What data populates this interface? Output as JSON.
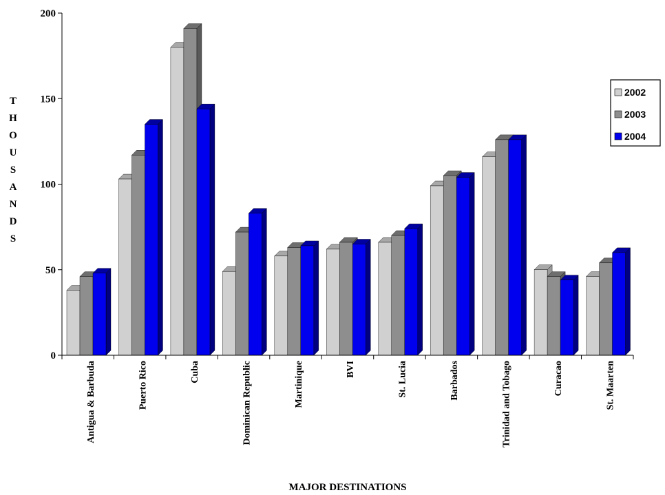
{
  "chart_data": {
    "type": "bar",
    "title": "",
    "xlabel": "MAJOR DESTINATIONS",
    "ylabel": "THOUSANDS",
    "ylim": [
      0,
      200
    ],
    "yticks": [
      0,
      50,
      100,
      150,
      200
    ],
    "categories": [
      "Antigua & Barbuda",
      "Puerto Rico",
      "Cuba",
      "Dominican Republic",
      "Martinique",
      "BVI",
      "St. Lucia",
      "Barbados",
      "Trinidad and Tobago",
      "Curacao",
      "St. Maarten"
    ],
    "series": [
      {
        "name": "2002",
        "color": "#d0d0d0",
        "top_color": "#a8a8a8",
        "side_color": "#9a9a9a",
        "values": [
          38,
          103,
          180,
          49,
          58,
          62,
          66,
          99,
          116,
          50,
          46
        ]
      },
      {
        "name": "2003",
        "color": "#8e8e8e",
        "top_color": "#6e6e6e",
        "side_color": "#5a5a5a",
        "values": [
          46,
          117,
          191,
          72,
          63,
          66,
          70,
          105,
          126,
          46,
          54
        ]
      },
      {
        "name": "2004",
        "color": "#0000ee",
        "top_color": "#0000a0",
        "side_color": "#000080",
        "values": [
          48,
          135,
          144,
          83,
          64,
          65,
          74,
          104,
          126,
          44,
          60
        ]
      }
    ],
    "legend_position": "right",
    "grid": false,
    "style": "3d-bar"
  }
}
